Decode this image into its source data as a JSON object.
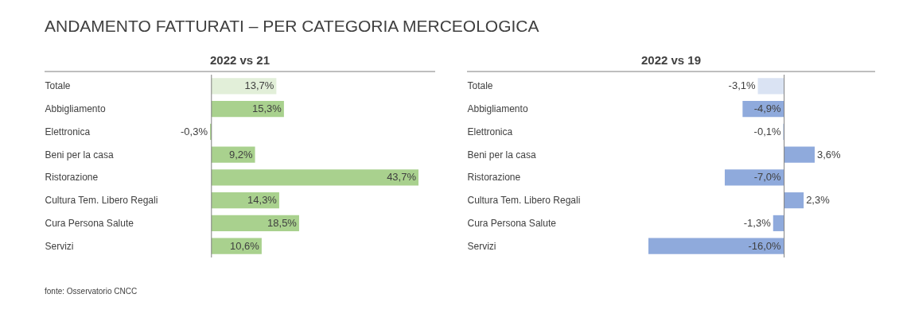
{
  "chart_data": [
    {
      "type": "bar",
      "orientation": "horizontal",
      "title": "2022 vs 21",
      "annotations": [
        "ANDAMENTO FATTURATI – PER CATEGORIA MERCEOLOGICA",
        "fonte: Osservatorio CNCC"
      ],
      "categories": [
        "Totale",
        "Abbigliamento",
        "Elettronica",
        "Beni per la casa",
        "Ristorazione",
        "Cultura Tem. Libero Regali",
        "Cura Persona Salute",
        "Servizi"
      ],
      "values": [
        13.7,
        15.3,
        -0.3,
        9.2,
        43.7,
        14.3,
        18.5,
        10.6
      ],
      "value_labels": [
        "13,7%",
        "15,3%",
        "-0,3%",
        "9,2%",
        "43,7%",
        "14,3%",
        "18,5%",
        "10,6%"
      ],
      "colors": [
        "#e2efd9",
        "#a9d18e",
        "#a9d18e",
        "#a9d18e",
        "#a9d18e",
        "#a9d18e",
        "#a9d18e",
        "#a9d18e"
      ],
      "ref_lines": [
        {
          "axis": "x",
          "value": 0,
          "color": "#7f7f7f"
        }
      ]
    },
    {
      "type": "bar",
      "orientation": "horizontal",
      "title": "2022 vs 19",
      "categories": [
        "Totale",
        "Abbigliamento",
        "Elettronica",
        "Beni per la casa",
        "Ristorazione",
        "Cultura Tem. Libero Regali",
        "Cura Persona Salute",
        "Servizi"
      ],
      "values": [
        -3.1,
        -4.9,
        -0.1,
        3.6,
        -7.0,
        2.3,
        -1.3,
        -16.0
      ],
      "value_labels": [
        "-3,1%",
        "-4,9%",
        "-0,1%",
        "3,6%",
        "-7,0%",
        "2,3%",
        "-1,3%",
        "-16,0%"
      ],
      "colors": [
        "#dae3f3",
        "#8faadc",
        "#8faadc",
        "#8faadc",
        "#8faadc",
        "#8faadc",
        "#8faadc",
        "#8faadc"
      ],
      "ref_lines": [
        {
          "axis": "x",
          "value": 0,
          "color": "#7f7f7f"
        }
      ]
    }
  ]
}
